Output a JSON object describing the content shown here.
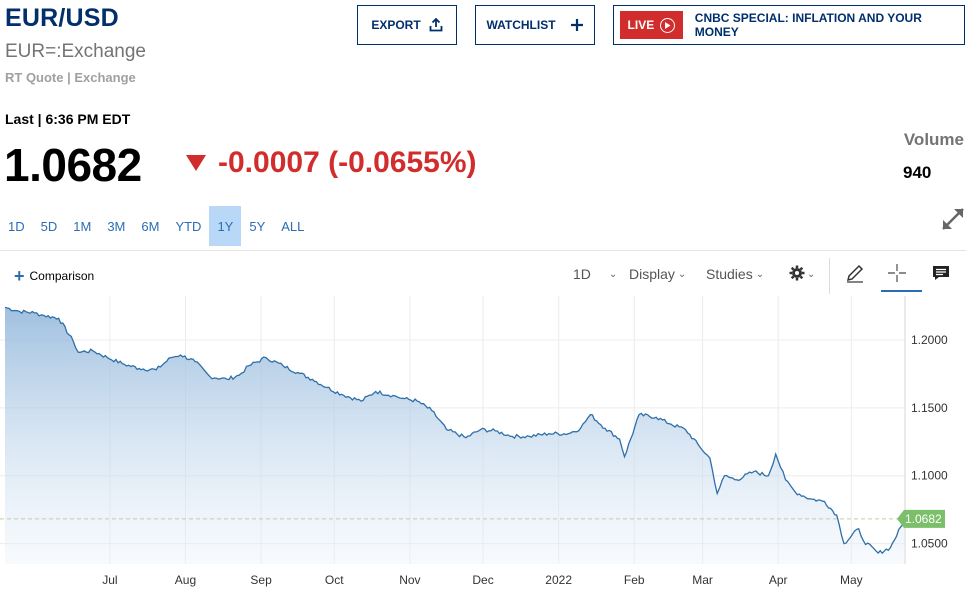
{
  "header": {
    "symbol": "EUR/USD",
    "exchange": "EUR=:Exchange",
    "quote_type": "RT Quote | Exchange"
  },
  "actions": {
    "export_label": "EXPORT",
    "watchlist_label": "WATCHLIST",
    "live_badge": "LIVE",
    "live_title": "CNBC SPECIAL: INFLATION AND YOUR MONEY"
  },
  "quote": {
    "last_label": "Last | 6:36 PM EDT",
    "price": "1.0682",
    "change": "-0.0007 (-0.0655%)",
    "volume_label": "Volume",
    "volume_value": "940"
  },
  "ranges": [
    "1D",
    "5D",
    "1M",
    "3M",
    "6M",
    "YTD",
    "1Y",
    "5Y",
    "ALL"
  ],
  "active_range": "1Y",
  "toolbar": {
    "comparison_label": "Comparison",
    "interval": "1D",
    "display_label": "Display",
    "studies_label": "Studies"
  },
  "icons": {
    "export": "upload-icon",
    "watchlist": "plus-icon",
    "live": "play-circle-icon",
    "expand": "expand-arrows-icon",
    "settings": "gear-icon",
    "draw": "pencil-icon",
    "crosshair": "crosshair-icon",
    "annotate": "comment-icon"
  },
  "colors": {
    "brand_navy": "#002f6c",
    "down_red": "#d12d2d",
    "link_blue": "#2b6db5",
    "active_range_bg": "#b9d8f8",
    "line": "#2f6fa8",
    "price_tag": "#7bbf6a"
  },
  "chart_data": {
    "type": "area",
    "current_value_label": "1.0682",
    "current_value": 1.0682,
    "ylim": [
      1.035,
      1.225
    ],
    "yticks": [
      1.05,
      1.1,
      1.15,
      1.2
    ],
    "ytick_labels": [
      "1.0500",
      "1.1000",
      "1.1500",
      "1.2000"
    ],
    "xlim": [
      "2021-05-19",
      "2022-05-23"
    ],
    "xticks": [
      "2021-07-01",
      "2021-08-01",
      "2021-09-01",
      "2021-10-01",
      "2021-11-01",
      "2021-12-01",
      "2022-01-01",
      "2022-02-01",
      "2022-03-01",
      "2022-04-01",
      "2022-05-01"
    ],
    "xtick_labels": [
      "Jul",
      "Aug",
      "Sep",
      "Oct",
      "Nov",
      "Dec",
      "2022",
      "Feb",
      "Mar",
      "Apr",
      "May"
    ],
    "grid": true,
    "series": [
      {
        "x": [
          "2021-05-19",
          "2021-05-25",
          "2021-05-31",
          "2021-06-04",
          "2021-06-10",
          "2021-06-16",
          "2021-06-18",
          "2021-06-24",
          "2021-06-30",
          "2021-07-07",
          "2021-07-13",
          "2021-07-20",
          "2021-07-26",
          "2021-07-30",
          "2021-08-05",
          "2021-08-11",
          "2021-08-18",
          "2021-08-23",
          "2021-08-27",
          "2021-09-03",
          "2021-09-10",
          "2021-09-16",
          "2021-09-22",
          "2021-09-28",
          "2021-10-04",
          "2021-10-12",
          "2021-10-18",
          "2021-10-25",
          "2021-10-29",
          "2021-11-04",
          "2021-11-10",
          "2021-11-16",
          "2021-11-24",
          "2021-11-30",
          "2021-12-06",
          "2021-12-13",
          "2021-12-20",
          "2021-12-28",
          "2022-01-05",
          "2022-01-10",
          "2022-01-14",
          "2022-01-20",
          "2022-01-26",
          "2022-01-28",
          "2022-02-03",
          "2022-02-10",
          "2022-02-16",
          "2022-02-22",
          "2022-02-28",
          "2022-03-04",
          "2022-03-07",
          "2022-03-10",
          "2022-03-15",
          "2022-03-22",
          "2022-03-28",
          "2022-03-31",
          "2022-04-04",
          "2022-04-08",
          "2022-04-14",
          "2022-04-20",
          "2022-04-25",
          "2022-04-28",
          "2022-05-04",
          "2022-05-06",
          "2022-05-12",
          "2022-05-17",
          "2022-05-23"
        ],
        "y": [
          1.224,
          1.221,
          1.22,
          1.218,
          1.216,
          1.199,
          1.191,
          1.192,
          1.187,
          1.182,
          1.179,
          1.178,
          1.187,
          1.189,
          1.184,
          1.173,
          1.171,
          1.174,
          1.181,
          1.187,
          1.181,
          1.176,
          1.171,
          1.165,
          1.16,
          1.155,
          1.162,
          1.159,
          1.157,
          1.155,
          1.148,
          1.134,
          1.128,
          1.134,
          1.133,
          1.129,
          1.129,
          1.131,
          1.131,
          1.135,
          1.145,
          1.135,
          1.127,
          1.114,
          1.145,
          1.143,
          1.138,
          1.134,
          1.121,
          1.113,
          1.087,
          1.1,
          1.097,
          1.103,
          1.1,
          1.116,
          1.097,
          1.088,
          1.083,
          1.081,
          1.071,
          1.05,
          1.061,
          1.052,
          1.043,
          1.047,
          1.0682
        ]
      }
    ]
  }
}
